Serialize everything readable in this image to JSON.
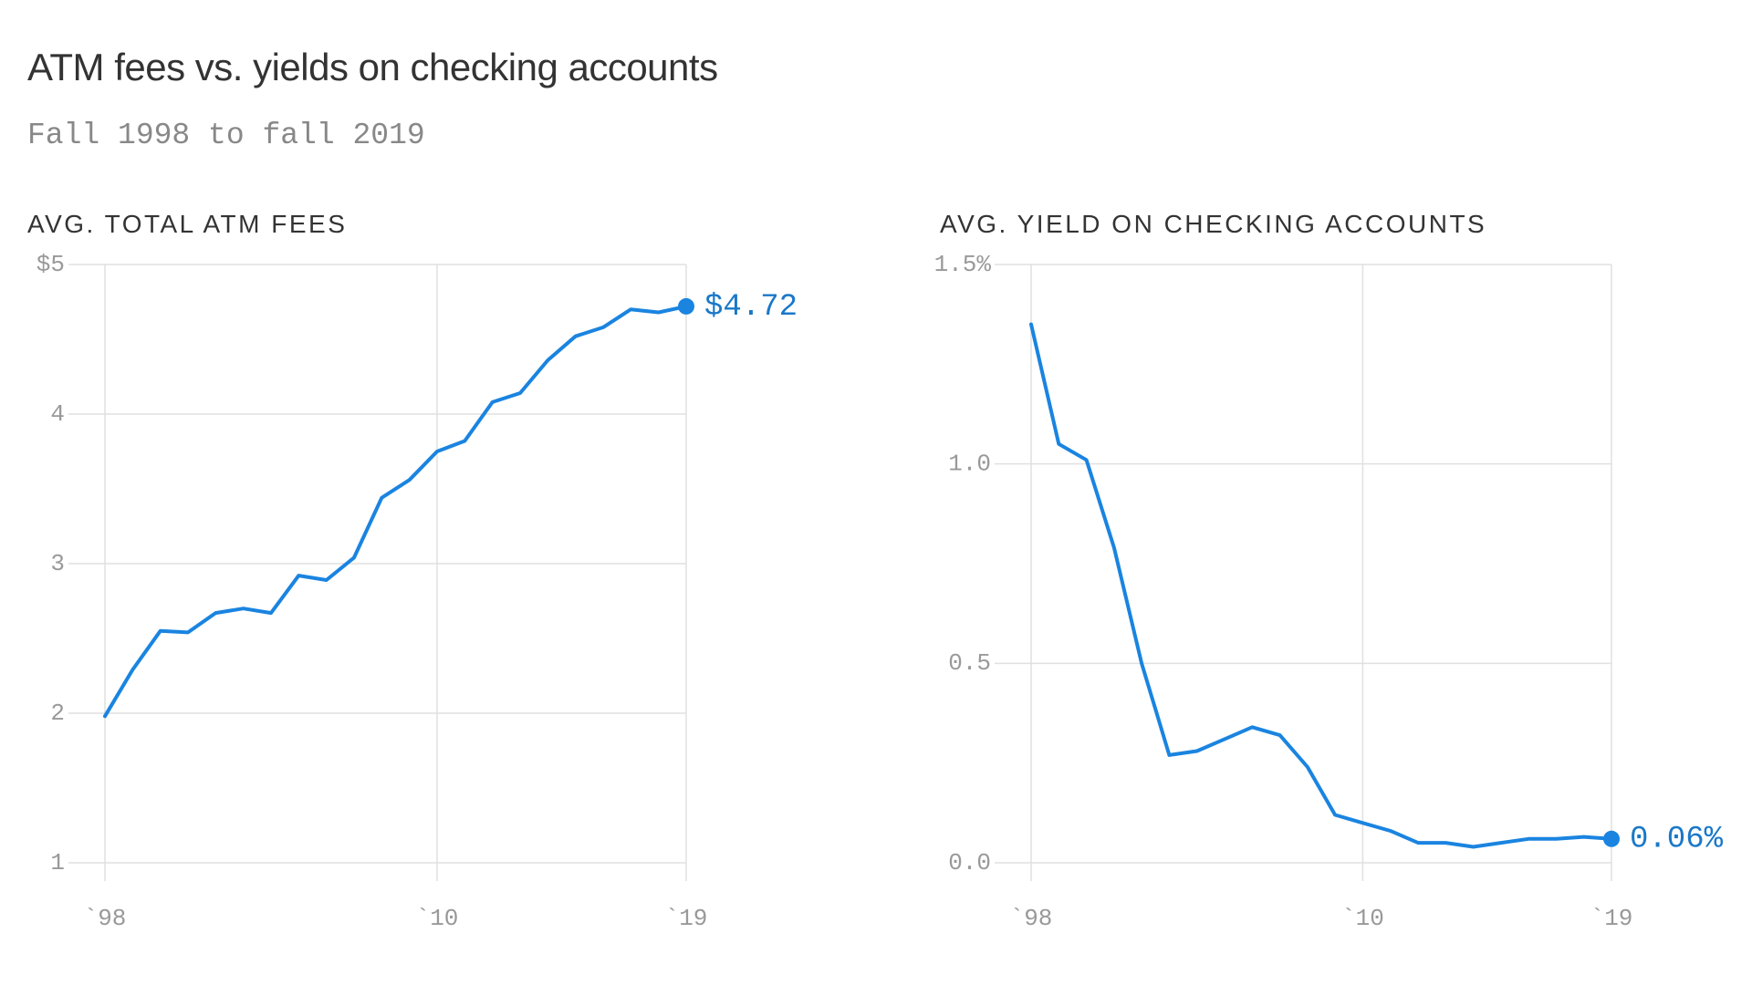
{
  "title": "ATM fees vs. yields on checking accounts",
  "subtitle": "Fall 1998 to fall 2019",
  "colors": {
    "line": "#1a84e0",
    "end_label": "#1a78c8",
    "grid": "#e0e0e0",
    "tick": "#999999"
  },
  "chart_data": [
    {
      "type": "line",
      "title": "AVG. TOTAL ATM FEES",
      "x": [
        1998,
        1999,
        2000,
        2001,
        2002,
        2003,
        2004,
        2005,
        2006,
        2007,
        2008,
        2009,
        2010,
        2011,
        2012,
        2013,
        2014,
        2015,
        2016,
        2017,
        2018,
        2019
      ],
      "values": [
        1.98,
        2.29,
        2.55,
        2.54,
        2.67,
        2.7,
        2.67,
        2.92,
        2.89,
        3.04,
        3.44,
        3.56,
        3.75,
        3.82,
        4.08,
        4.14,
        4.36,
        4.52,
        4.58,
        4.7,
        4.68,
        4.72
      ],
      "xticks": [
        {
          "value": 1998,
          "label": "`98"
        },
        {
          "value": 2010,
          "label": "`10"
        },
        {
          "value": 2019,
          "label": "`19"
        }
      ],
      "yticks": [
        {
          "value": 5,
          "label": "$5"
        },
        {
          "value": 4,
          "label": "4"
        },
        {
          "value": 3,
          "label": "3"
        },
        {
          "value": 2,
          "label": "2"
        },
        {
          "value": 1,
          "label": "1"
        }
      ],
      "ylim": [
        1,
        5
      ],
      "xlim": [
        1998,
        2019
      ],
      "end_label": "$4.72",
      "grid": true
    },
    {
      "type": "line",
      "title": "AVG. YIELD ON CHECKING ACCOUNTS",
      "x": [
        1998,
        1999,
        2000,
        2001,
        2002,
        2003,
        2004,
        2005,
        2006,
        2007,
        2008,
        2009,
        2010,
        2011,
        2012,
        2013,
        2014,
        2015,
        2016,
        2017,
        2018,
        2019
      ],
      "values": [
        1.35,
        1.05,
        1.01,
        0.79,
        0.5,
        0.27,
        0.28,
        0.31,
        0.34,
        0.32,
        0.24,
        0.12,
        0.1,
        0.08,
        0.05,
        0.05,
        0.04,
        0.05,
        0.06,
        0.06,
        0.065,
        0.06
      ],
      "xticks": [
        {
          "value": 1998,
          "label": "`98"
        },
        {
          "value": 2010,
          "label": "`10"
        },
        {
          "value": 2019,
          "label": "`19"
        }
      ],
      "yticks": [
        {
          "value": 1.5,
          "label": "1.5%"
        },
        {
          "value": 1.0,
          "label": "1.0"
        },
        {
          "value": 0.5,
          "label": "0.5"
        },
        {
          "value": 0.0,
          "label": "0.0"
        }
      ],
      "ylim": [
        0,
        1.5
      ],
      "xlim": [
        1998,
        2019
      ],
      "end_label": "0.06%",
      "grid": true
    }
  ]
}
